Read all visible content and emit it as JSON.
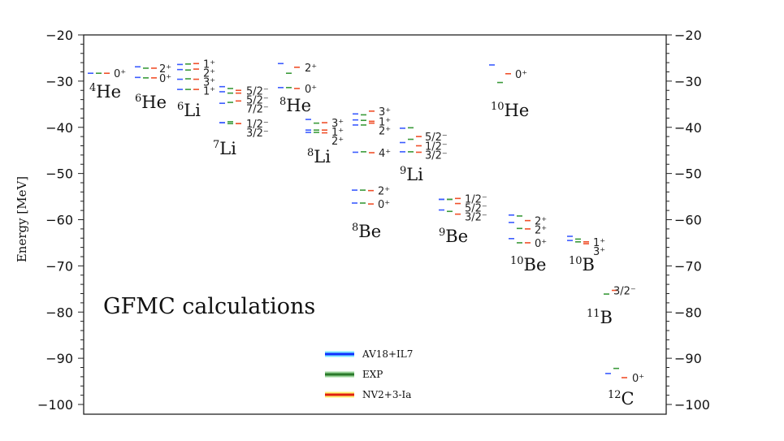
{
  "chart_data": {
    "type": "energy-level",
    "title": "GFMC calculations",
    "ylabel": "Energy [MeV]",
    "ylim": [
      -100,
      -20
    ],
    "yticks": [
      -20,
      -30,
      -40,
      -50,
      -60,
      -70,
      -80,
      -90,
      -100
    ],
    "series_colors": {
      "AV18+IL7": "#3b5bff",
      "EXP": "#3a9a3a",
      "NV2+3-Ia": "#f0502a"
    },
    "legend": [
      {
        "name": "AV18+IL7",
        "color": "#1030ff",
        "glow": "#7fe8ff"
      },
      {
        "name": "EXP",
        "color": "#2a7a2a",
        "glow": "#9ad49a"
      },
      {
        "name": "NV2+3-Ia",
        "color": "#e02010",
        "glow": "#fff070"
      }
    ],
    "legend_position": "bottom-center",
    "nuclei": [
      {
        "name": "He",
        "A": "4",
        "levels": [
          {
            "J": "0⁺",
            "E": [
              -28.3,
              -28.3,
              -28.3
            ]
          }
        ]
      },
      {
        "name": "He",
        "A": "6",
        "levels": [
          {
            "J": "2⁺",
            "E": [
              -26.9,
              -27.2,
              -27.2
            ]
          },
          {
            "J": "0⁺",
            "E": [
              -29.2,
              -29.3,
              -29.3
            ]
          }
        ]
      },
      {
        "name": "Li",
        "A": "6",
        "levels": [
          {
            "J": "1⁺",
            "E": [
              -26.4,
              -26.3,
              -26.2
            ]
          },
          {
            "J": "2⁺",
            "E": [
              -27.5,
              -27.6,
              -27.4
            ]
          },
          {
            "J": "3⁺",
            "E": [
              -29.6,
              -29.5,
              -29.6
            ]
          },
          {
            "J": "1⁺",
            "E": [
              -31.8,
              -31.8,
              -31.8
            ]
          }
        ]
      },
      {
        "name": "Li",
        "A": "7",
        "levels": [
          {
            "J": "5/2⁻",
            "E": [
              -31.2,
              -31.6,
              -32.0
            ]
          },
          {
            "J": "5/2⁻",
            "E": [
              -32.3,
              -32.6,
              -32.6
            ]
          },
          {
            "J": "7/2⁻",
            "E": [
              -34.8,
              -34.6,
              -34.3
            ]
          },
          {
            "J": "1/2⁻",
            "E": [
              -39.0,
              -38.8,
              -39.2
            ]
          },
          {
            "J": "3/2⁻",
            "E": [
              -39.0,
              -39.2,
              -39.2
            ]
          }
        ]
      },
      {
        "name": "He",
        "A": "8",
        "levels": [
          {
            "J": "2⁺",
            "E": [
              -26.2,
              -28.3,
              -27.0
            ]
          },
          {
            "J": "0⁺",
            "E": [
              -31.4,
              -31.4,
              -31.6
            ]
          }
        ]
      },
      {
        "name": "Li",
        "A": "8",
        "levels": [
          {
            "J": "3⁺",
            "E": [
              -38.3,
              -39.1,
              -39.0
            ]
          },
          {
            "J": "1⁺",
            "E": [
              -40.6,
              -40.6,
              -40.6
            ]
          },
          {
            "J": "2⁺",
            "E": [
              -41.1,
              -41.1,
              -41.2
            ]
          }
        ]
      },
      {
        "name": "",
        "A": "",
        "levels": [
          {
            "J": "3⁺",
            "E": [
              -37.1,
              -37.3,
              -36.5
            ]
          },
          {
            "J": "1⁺",
            "E": [
              -38.4,
              -38.5,
              -38.7
            ]
          },
          {
            "J": "2⁺",
            "E": [
              -39.5,
              -39.5,
              -39.1
            ]
          },
          {
            "J": "4⁺",
            "E": [
              -45.4,
              -45.3,
              -45.5
            ]
          }
        ]
      },
      {
        "name": "Li",
        "A": "9",
        "levels": [
          {
            "J": "5/2⁻",
            "E": [
              -40.2,
              -40.1,
              -42.0
            ]
          },
          {
            "J": "1/2⁻",
            "E": [
              -43.3,
              -42.6,
              -44.0
            ]
          },
          {
            "J": "3/2⁻",
            "E": [
              -45.3,
              -45.3,
              -45.4
            ]
          }
        ]
      },
      {
        "name": "Be",
        "A": "8",
        "levels": [
          {
            "J": "2⁺",
            "E": [
              -53.6,
              -53.6,
              -53.7
            ]
          },
          {
            "J": "0⁺",
            "E": [
              -56.4,
              -56.4,
              -56.6
            ]
          }
        ]
      },
      {
        "name": "Be",
        "A": "9",
        "levels": [
          {
            "J": "1/2⁻",
            "E": [
              -55.6,
              -55.6,
              -55.4
            ]
          },
          {
            "J": "5/2⁻",
            "E": [
              -55.6,
              -55.6,
              -56.5
            ]
          },
          {
            "J": "3/2⁻",
            "E": [
              -57.9,
              -58.2,
              -58.8
            ]
          }
        ]
      },
      {
        "name": "He",
        "A": "10",
        "levels": [
          {
            "J": "0⁺",
            "E": [
              -26.5,
              -30.3,
              -28.4
            ]
          }
        ]
      },
      {
        "name": "Be",
        "A": "10",
        "levels": [
          {
            "J": "2⁺",
            "E": [
              -59.0,
              -59.2,
              -60.2
            ]
          },
          {
            "J": "2⁺",
            "E": [
              -60.6,
              -61.9,
              -62.0
            ]
          },
          {
            "J": "0⁺",
            "E": [
              -64.1,
              -65.0,
              -65.0
            ]
          }
        ]
      },
      {
        "name": "B",
        "A": "10",
        "levels": [
          {
            "J": "1⁺",
            "E": [
              -63.6,
              -64.2,
              -64.8
            ]
          },
          {
            "J": "3⁺",
            "E": [
              -64.5,
              -64.8,
              -65.2
            ]
          }
        ]
      },
      {
        "name": "B",
        "A": "11",
        "levels": [
          {
            "J": "3/2⁻",
            "E": [
              null,
              -76.1,
              -75.3
            ]
          }
        ]
      },
      {
        "name": "C",
        "A": "12",
        "levels": [
          {
            "J": "0⁺",
            "E": [
              -93.3,
              -92.2,
              -94.2
            ]
          }
        ]
      }
    ]
  }
}
